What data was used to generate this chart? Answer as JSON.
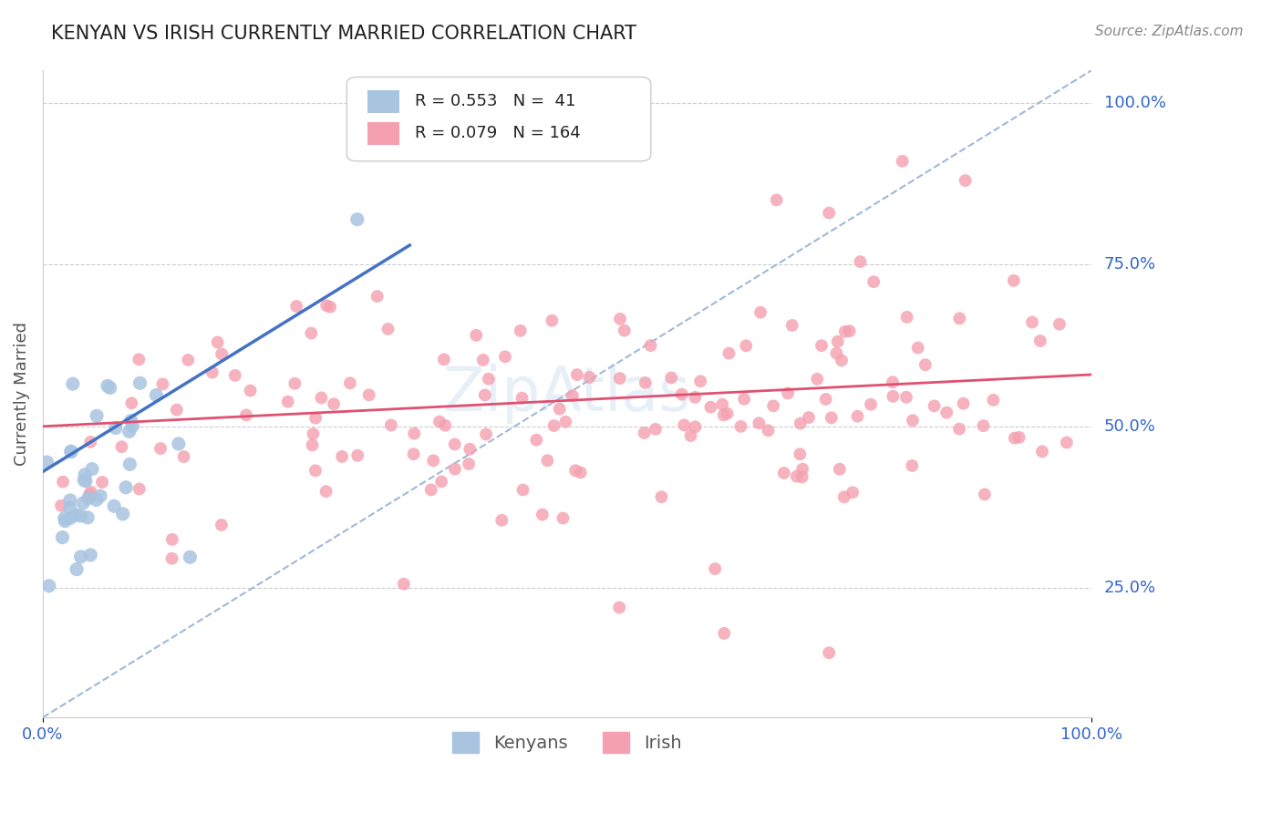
{
  "title": "KENYAN VS IRISH CURRENTLY MARRIED CORRELATION CHART",
  "ylabel": "Currently Married",
  "source": "Source: ZipAtlas.com",
  "kenyan_R": 0.553,
  "kenyan_N": 41,
  "irish_R": 0.079,
  "irish_N": 164,
  "kenyan_color": "#a8c4e0",
  "irish_color": "#f4a0b0",
  "kenyan_line_color": "#4472c4",
  "irish_line_color": "#e05070",
  "diag_color": "#a0b8d8",
  "title_color": "#222222",
  "label_color": "#3366cc",
  "legend_label_kenyan": "Kenyans",
  "legend_label_irish": "Irish",
  "background_color": "#ffffff",
  "ytick_values": [
    0.25,
    0.5,
    0.75,
    1.0
  ],
  "ytick_labels": [
    "25.0%",
    "50.0%",
    "75.0%",
    "100.0%"
  ]
}
